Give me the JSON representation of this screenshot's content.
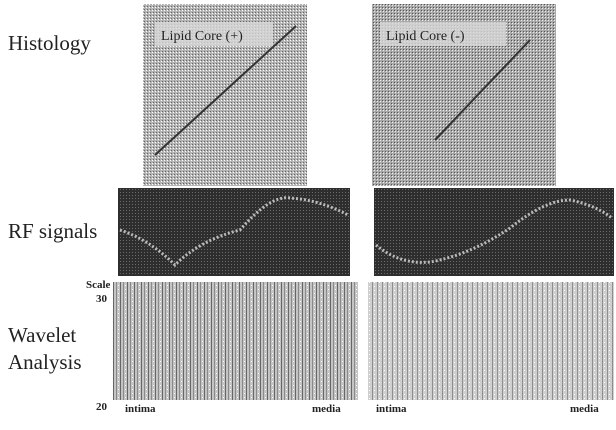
{
  "row_labels": {
    "histology": "Histology",
    "rf": "RF signals",
    "wavelet": [
      "Wavelet",
      "Analysis"
    ]
  },
  "scale": {
    "title": "Scale",
    "top": "30",
    "bottom": "20"
  },
  "panels": [
    {
      "histology_label": "Lipid Core (+)",
      "x_labels": [
        "intima",
        "media"
      ]
    },
    {
      "histology_label": "Lipid Core (-)",
      "x_labels": [
        "intima",
        "media"
      ]
    }
  ]
}
